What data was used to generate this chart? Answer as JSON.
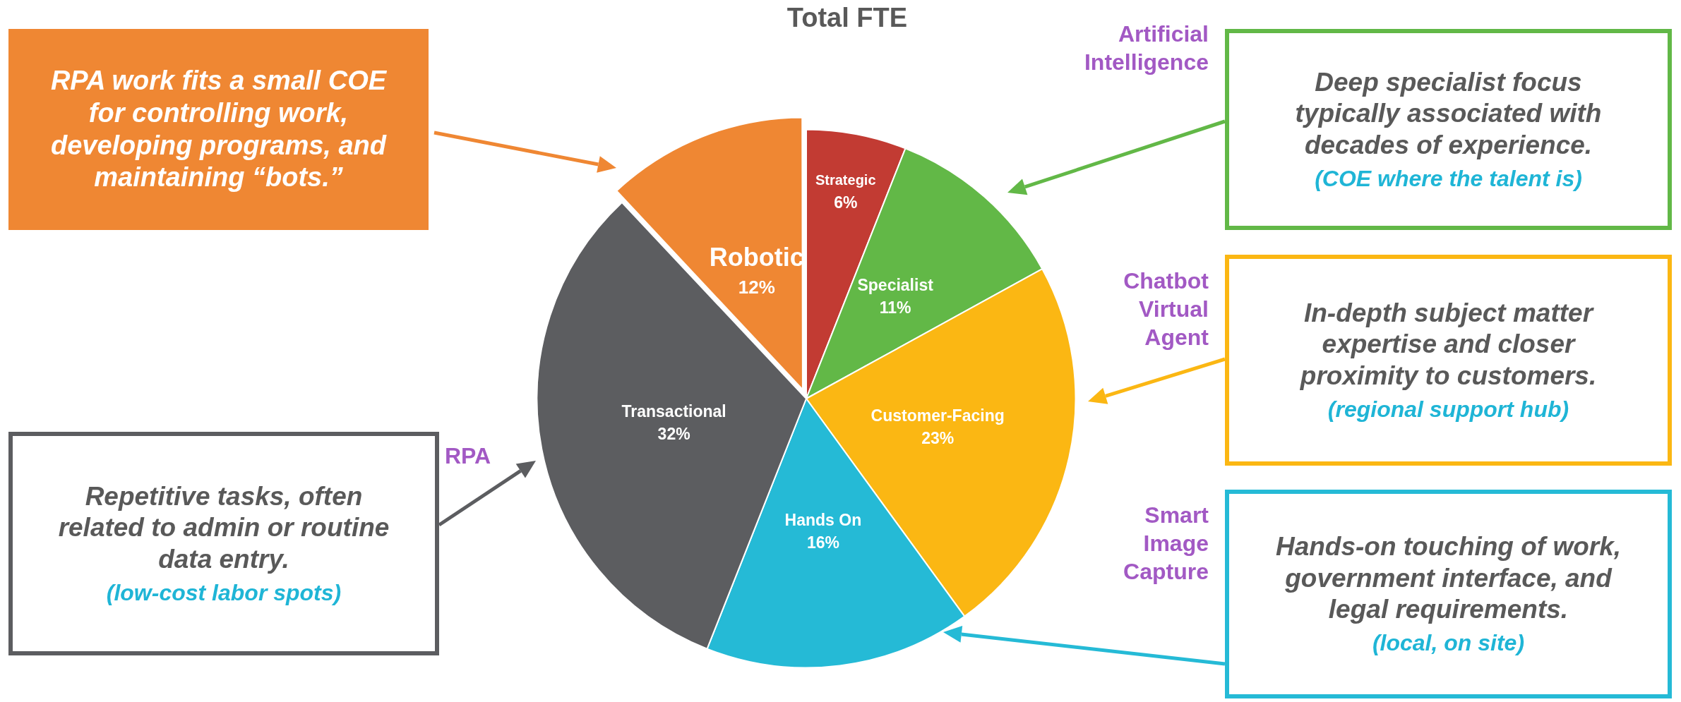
{
  "chart_data": {
    "type": "pie",
    "title": "Total FTE",
    "categories": [
      "Strategic",
      "Specialist",
      "Customer-Facing",
      "Hands On",
      "Transactional",
      "Robotic"
    ],
    "values": [
      6,
      11,
      23,
      16,
      32,
      12
    ],
    "colors": [
      "#c23b33",
      "#62b847",
      "#fbb713",
      "#25bad6",
      "#5c5d60",
      "#ef8733"
    ],
    "value_labels": [
      "6%",
      "11%",
      "23%",
      "16%",
      "32%",
      "12%"
    ],
    "annotations": [
      "RPA work fits a small COE for controlling work, developing programs, and maintaining “bots.”",
      "Artificial Intelligence",
      "Deep specialist focus typically associated with decades of experience.",
      "(COE where the talent is)",
      "Chatbot Virtual Agent",
      "In-depth subject matter expertise and closer proximity to customers.",
      "(regional support hub)",
      "Smart Image Capture",
      "Hands-on touching of work, government interface, and legal requirements.",
      "(local, on site)",
      "RPA",
      "Repetitive tasks, often related to admin or routine data entry.",
      "(low-cost labor spots)"
    ]
  }
}
